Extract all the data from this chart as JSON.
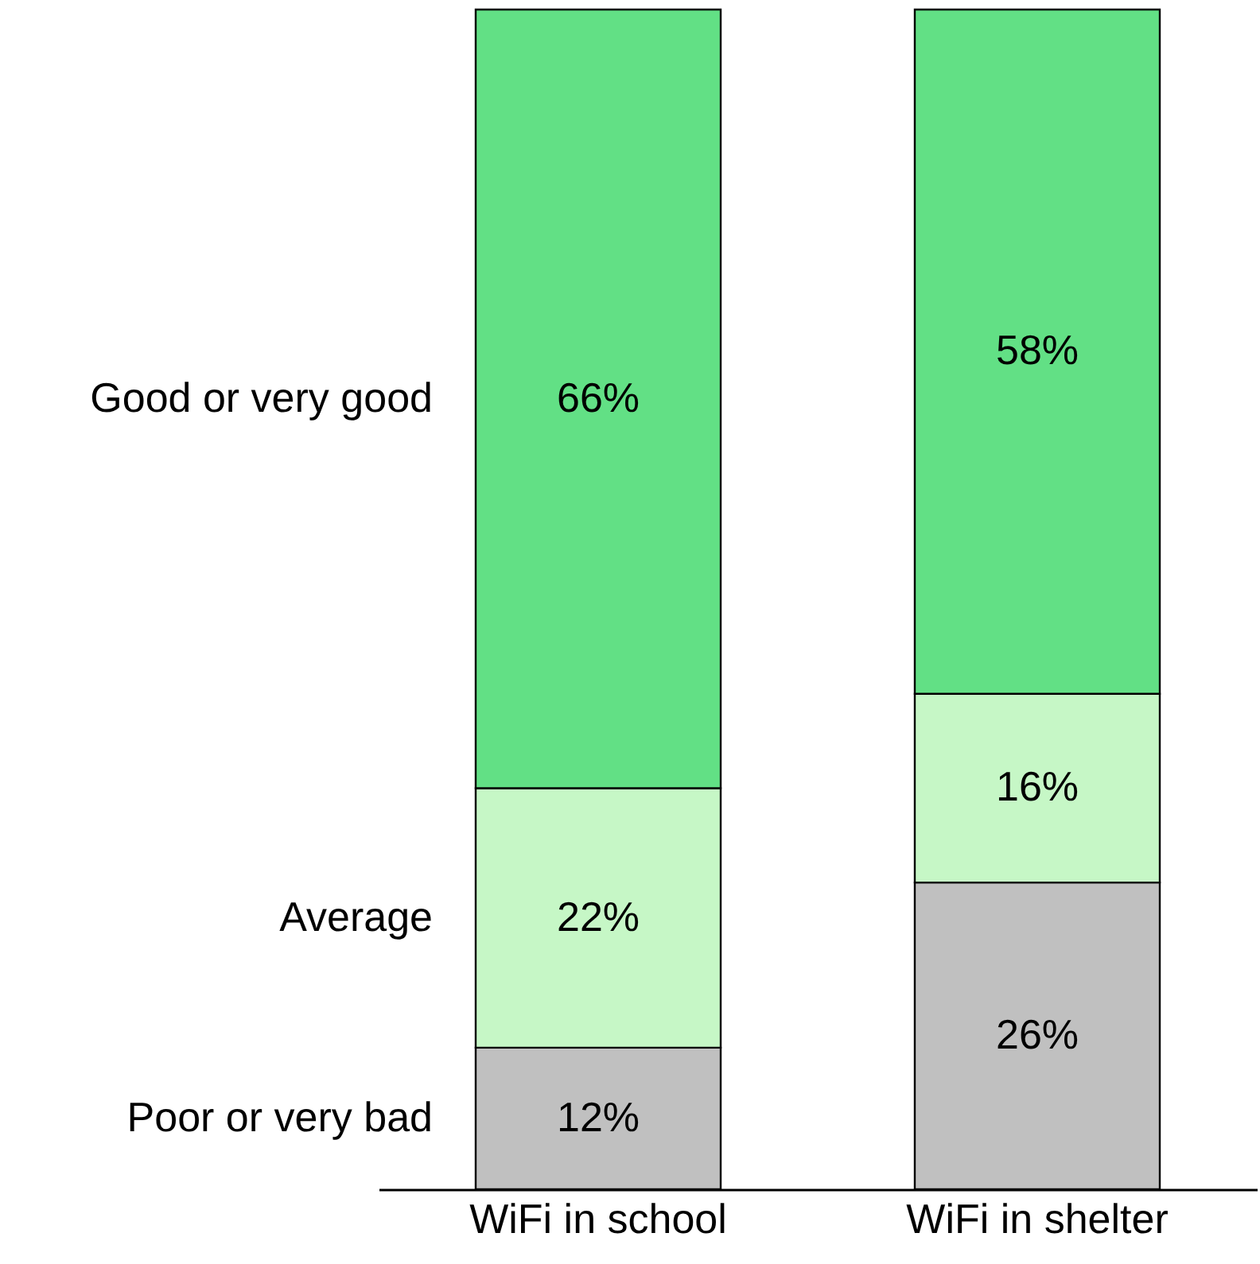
{
  "chart_data": {
    "type": "bar",
    "stacked": true,
    "categories": [
      "WiFi in school",
      "WiFi in shelter"
    ],
    "tick_labels": "x",
    "series": [
      {
        "name": "Poor or very bad",
        "color": "#c0c0c0",
        "values": [
          12,
          26
        ],
        "value_labels": [
          "12%",
          "26%"
        ]
      },
      {
        "name": "Average",
        "color": "#c6f7c6",
        "values": [
          22,
          16
        ],
        "value_labels": [
          "22%",
          "16%"
        ]
      },
      {
        "name": "Good or very good",
        "color": "#62e085",
        "values": [
          66,
          58
        ],
        "value_labels": [
          "66%",
          "58%"
        ]
      }
    ]
  }
}
